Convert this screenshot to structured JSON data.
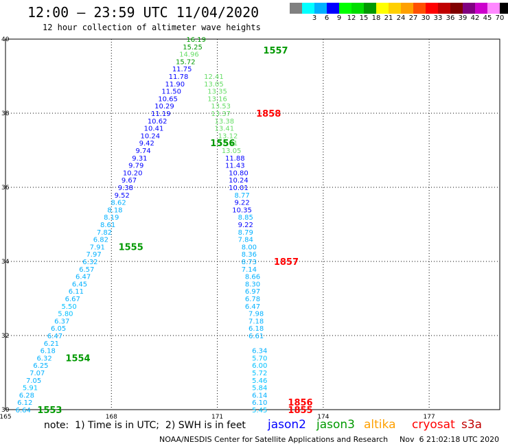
{
  "header": {
    "title": "12:00 – 23:59 UTC 11/04/2020",
    "subtitle": "12 hour collection of altimeter wave heights"
  },
  "legend": {
    "unit": "(ft)",
    "scale": [
      {
        "label": "",
        "color": "#808080"
      },
      {
        "label": "3",
        "color": "#00ffff"
      },
      {
        "label": "6",
        "color": "#00b0ff"
      },
      {
        "label": "9",
        "color": "#0000ff"
      },
      {
        "label": "12",
        "color": "#00ff00"
      },
      {
        "label": "15",
        "color": "#00dd00"
      },
      {
        "label": "18",
        "color": "#009900"
      },
      {
        "label": "21",
        "color": "#ffff00"
      },
      {
        "label": "24",
        "color": "#ffd000"
      },
      {
        "label": "27",
        "color": "#ffa000"
      },
      {
        "label": "30",
        "color": "#ff5000"
      },
      {
        "label": "33",
        "color": "#ff0000"
      },
      {
        "label": "36",
        "color": "#c00000"
      },
      {
        "label": "39",
        "color": "#800000"
      },
      {
        "label": "42",
        "color": "#800080"
      },
      {
        "label": "45",
        "color": "#cc00cc"
      },
      {
        "label": "70",
        "color": "#ff88ff"
      },
      {
        "label": "",
        "color": "#000000"
      }
    ]
  },
  "chart_data": {
    "type": "scatter",
    "xticks": [
      "165",
      "168",
      "171",
      "174",
      "177"
    ],
    "yticks": [
      "30",
      "32",
      "34",
      "36",
      "38",
      "40"
    ],
    "xlim": [
      165,
      179
    ],
    "ylim": [
      30,
      40
    ],
    "grid": true,
    "series": [
      {
        "name": "pass 1553-1557 west",
        "points": [
          {
            "x": 165.5,
            "y": 30.0,
            "v": "6.64",
            "c": "#00b0ff"
          },
          {
            "x": 165.55,
            "y": 30.2,
            "v": "6.12",
            "c": "#00b0ff"
          },
          {
            "x": 165.6,
            "y": 30.4,
            "v": "6.28",
            "c": "#00b0ff"
          },
          {
            "x": 165.7,
            "y": 30.6,
            "v": "5.91",
            "c": "#00c0ff"
          },
          {
            "x": 165.8,
            "y": 30.8,
            "v": "7.05",
            "c": "#00b0ff"
          },
          {
            "x": 165.9,
            "y": 31.0,
            "v": "7.07",
            "c": "#00b0ff"
          },
          {
            "x": 166.0,
            "y": 31.2,
            "v": "6.25",
            "c": "#00b0ff"
          },
          {
            "x": 166.1,
            "y": 31.4,
            "v": "6.32",
            "c": "#00b0ff"
          },
          {
            "x": 166.2,
            "y": 31.6,
            "v": "6.18",
            "c": "#00b0ff"
          },
          {
            "x": 166.3,
            "y": 31.8,
            "v": "6.21",
            "c": "#00b0ff"
          },
          {
            "x": 166.4,
            "y": 32.0,
            "v": "6.47",
            "c": "#00b0ff"
          },
          {
            "x": 166.5,
            "y": 32.2,
            "v": "6.05",
            "c": "#00b0ff"
          },
          {
            "x": 166.6,
            "y": 32.4,
            "v": "6.37",
            "c": "#00b0ff"
          },
          {
            "x": 166.7,
            "y": 32.6,
            "v": "5.80",
            "c": "#00c0ff"
          },
          {
            "x": 166.8,
            "y": 32.8,
            "v": "5.50",
            "c": "#00c0ff"
          },
          {
            "x": 166.9,
            "y": 33.0,
            "v": "6.67",
            "c": "#00b0ff"
          },
          {
            "x": 167.0,
            "y": 33.2,
            "v": "6.11",
            "c": "#00b0ff"
          },
          {
            "x": 167.1,
            "y": 33.4,
            "v": "6.45",
            "c": "#00b0ff"
          },
          {
            "x": 167.2,
            "y": 33.6,
            "v": "6.47",
            "c": "#00b0ff"
          },
          {
            "x": 167.3,
            "y": 33.8,
            "v": "6.57",
            "c": "#00b0ff"
          },
          {
            "x": 167.4,
            "y": 34.0,
            "v": "6.32",
            "c": "#00b0ff"
          },
          {
            "x": 167.5,
            "y": 34.2,
            "v": "7.97",
            "c": "#00b0ff"
          },
          {
            "x": 167.6,
            "y": 34.4,
            "v": "7.91",
            "c": "#00b0ff"
          },
          {
            "x": 167.7,
            "y": 34.6,
            "v": "6.82",
            "c": "#00b0ff"
          },
          {
            "x": 167.8,
            "y": 34.8,
            "v": "7.82",
            "c": "#00b0ff"
          },
          {
            "x": 167.9,
            "y": 35.0,
            "v": "8.61",
            "c": "#00b0ff"
          },
          {
            "x": 168.0,
            "y": 35.2,
            "v": "8.19",
            "c": "#00b0ff"
          },
          {
            "x": 168.1,
            "y": 35.4,
            "v": "8.18",
            "c": "#00b0ff"
          },
          {
            "x": 168.2,
            "y": 35.6,
            "v": "8.62",
            "c": "#00b0ff"
          },
          {
            "x": 168.3,
            "y": 35.8,
            "v": "9.52",
            "c": "#0000ff"
          },
          {
            "x": 168.4,
            "y": 36.0,
            "v": "9.38",
            "c": "#0000ff"
          },
          {
            "x": 168.5,
            "y": 36.2,
            "v": "9.67",
            "c": "#0000ff"
          },
          {
            "x": 168.6,
            "y": 36.4,
            "v": "10.20",
            "c": "#0000ff"
          },
          {
            "x": 168.7,
            "y": 36.6,
            "v": "9.79",
            "c": "#0000ff"
          },
          {
            "x": 168.8,
            "y": 36.8,
            "v": "9.31",
            "c": "#0000ff"
          },
          {
            "x": 168.9,
            "y": 37.0,
            "v": "9.74",
            "c": "#0000ff"
          },
          {
            "x": 169.0,
            "y": 37.2,
            "v": "9.42",
            "c": "#0000ff"
          },
          {
            "x": 169.1,
            "y": 37.4,
            "v": "10.24",
            "c": "#0000ff"
          },
          {
            "x": 169.2,
            "y": 37.6,
            "v": "10.41",
            "c": "#0000ff"
          },
          {
            "x": 169.3,
            "y": 37.8,
            "v": "10.62",
            "c": "#0000ff"
          },
          {
            "x": 169.4,
            "y": 38.0,
            "v": "11.19",
            "c": "#0000ff"
          },
          {
            "x": 169.5,
            "y": 38.2,
            "v": "10.29",
            "c": "#0000ff"
          },
          {
            "x": 169.6,
            "y": 38.4,
            "v": "10.65",
            "c": "#0000ff"
          },
          {
            "x": 169.7,
            "y": 38.6,
            "v": "11.50",
            "c": "#0000ff"
          },
          {
            "x": 169.8,
            "y": 38.8,
            "v": "11.90",
            "c": "#0000ff"
          },
          {
            "x": 169.9,
            "y": 39.0,
            "v": "11.78",
            "c": "#0000ff"
          },
          {
            "x": 170.0,
            "y": 39.2,
            "v": "11.75",
            "c": "#0000ff"
          },
          {
            "x": 170.1,
            "y": 39.4,
            "v": "15.72",
            "c": "#009900"
          },
          {
            "x": 170.2,
            "y": 39.6,
            "v": "14.96",
            "c": "#66dd66"
          },
          {
            "x": 170.3,
            "y": 39.8,
            "v": "15.25",
            "c": "#009900"
          },
          {
            "x": 170.4,
            "y": 40.0,
            "v": "16.19",
            "c": "#009900"
          }
        ]
      },
      {
        "name": "pass 1855-1858 east",
        "points": [
          {
            "x": 172.2,
            "y": 30.0,
            "v": "5.45",
            "c": "#00c0ff"
          },
          {
            "x": 172.2,
            "y": 30.2,
            "v": "6.10",
            "c": "#00b0ff"
          },
          {
            "x": 172.2,
            "y": 30.4,
            "v": "6.14",
            "c": "#00b0ff"
          },
          {
            "x": 172.2,
            "y": 30.6,
            "v": "5.84",
            "c": "#00c0ff"
          },
          {
            "x": 172.2,
            "y": 30.8,
            "v": "5.46",
            "c": "#00c0ff"
          },
          {
            "x": 172.2,
            "y": 31.0,
            "v": "5.72",
            "c": "#00c0ff"
          },
          {
            "x": 172.2,
            "y": 31.2,
            "v": "6.00",
            "c": "#00c0ff"
          },
          {
            "x": 172.2,
            "y": 31.4,
            "v": "5.70",
            "c": "#00c0ff"
          },
          {
            "x": 172.2,
            "y": 31.6,
            "v": "6.34",
            "c": "#00b0ff"
          },
          {
            "x": 172.1,
            "y": 32.0,
            "v": "6.61",
            "c": "#00b0ff"
          },
          {
            "x": 172.1,
            "y": 32.2,
            "v": "6.18",
            "c": "#00b0ff"
          },
          {
            "x": 172.1,
            "y": 32.4,
            "v": "7.18",
            "c": "#00b0ff"
          },
          {
            "x": 172.1,
            "y": 32.6,
            "v": "7.98",
            "c": "#00b0ff"
          },
          {
            "x": 172.0,
            "y": 32.8,
            "v": "6.47",
            "c": "#00b0ff"
          },
          {
            "x": 172.0,
            "y": 33.0,
            "v": "6.78",
            "c": "#00b0ff"
          },
          {
            "x": 172.0,
            "y": 33.2,
            "v": "6.97",
            "c": "#00b0ff"
          },
          {
            "x": 172.0,
            "y": 33.4,
            "v": "8.30",
            "c": "#00b0ff"
          },
          {
            "x": 172.0,
            "y": 33.6,
            "v": "8.66",
            "c": "#00b0ff"
          },
          {
            "x": 171.9,
            "y": 33.8,
            "v": "7.14",
            "c": "#00b0ff"
          },
          {
            "x": 171.9,
            "y": 34.0,
            "v": "8.73",
            "c": "#00b0ff"
          },
          {
            "x": 171.9,
            "y": 34.2,
            "v": "8.36",
            "c": "#00b0ff"
          },
          {
            "x": 171.9,
            "y": 34.4,
            "v": "8.00",
            "c": "#00b0ff"
          },
          {
            "x": 171.8,
            "y": 34.6,
            "v": "7.84",
            "c": "#00b0ff"
          },
          {
            "x": 171.8,
            "y": 34.8,
            "v": "8.79",
            "c": "#00b0ff"
          },
          {
            "x": 171.8,
            "y": 35.0,
            "v": "9.22",
            "c": "#0000ff"
          },
          {
            "x": 171.8,
            "y": 35.2,
            "v": "8.85",
            "c": "#00b0ff"
          },
          {
            "x": 171.7,
            "y": 35.4,
            "v": "10.35",
            "c": "#0000ff"
          },
          {
            "x": 171.7,
            "y": 35.6,
            "v": "9.22",
            "c": "#0000ff"
          },
          {
            "x": 171.7,
            "y": 35.8,
            "v": "8.77",
            "c": "#00b0ff"
          },
          {
            "x": 171.6,
            "y": 36.0,
            "v": "10.01",
            "c": "#0000ff"
          },
          {
            "x": 171.6,
            "y": 36.2,
            "v": "10.24",
            "c": "#0000ff"
          },
          {
            "x": 171.6,
            "y": 36.4,
            "v": "10.80",
            "c": "#0000ff"
          },
          {
            "x": 171.5,
            "y": 36.6,
            "v": "11.43",
            "c": "#0000ff"
          },
          {
            "x": 171.5,
            "y": 36.8,
            "v": "11.88",
            "c": "#0000ff"
          },
          {
            "x": 171.4,
            "y": 37.0,
            "v": "13.05",
            "c": "#66dd66"
          },
          {
            "x": 171.3,
            "y": 37.2,
            "v": "12.91",
            "c": "#66dd66"
          },
          {
            "x": 171.3,
            "y": 37.4,
            "v": "13.12",
            "c": "#66dd66"
          },
          {
            "x": 171.2,
            "y": 37.6,
            "v": "13.41",
            "c": "#66dd66"
          },
          {
            "x": 171.2,
            "y": 37.8,
            "v": "13.38",
            "c": "#66dd66"
          },
          {
            "x": 171.1,
            "y": 38.0,
            "v": "13.37",
            "c": "#66dd66"
          },
          {
            "x": 171.1,
            "y": 38.2,
            "v": "13.53",
            "c": "#66dd66"
          },
          {
            "x": 171.0,
            "y": 38.4,
            "v": "13.16",
            "c": "#66dd66"
          },
          {
            "x": 171.0,
            "y": 38.6,
            "v": "13.35",
            "c": "#66dd66"
          },
          {
            "x": 170.9,
            "y": 38.8,
            "v": "13.05",
            "c": "#66dd66"
          },
          {
            "x": 170.9,
            "y": 39.0,
            "v": "12.41",
            "c": "#66dd66"
          }
        ]
      }
    ],
    "pass_labels": [
      {
        "text": "1553",
        "x": 165.9,
        "y": 30.0,
        "c": "#009900"
      },
      {
        "text": "1554",
        "x": 166.7,
        "y": 31.4,
        "c": "#009900"
      },
      {
        "text": "1555",
        "x": 168.2,
        "y": 34.4,
        "c": "#009900"
      },
      {
        "text": "1556",
        "x": 170.8,
        "y": 37.2,
        "c": "#009900"
      },
      {
        "text": "1557",
        "x": 172.3,
        "y": 39.7,
        "c": "#009900"
      },
      {
        "text": "1855",
        "x": 173.0,
        "y": 30.0,
        "c": "#ff0000"
      },
      {
        "text": "1856",
        "x": 173.0,
        "y": 30.2,
        "c": "#ff0000"
      },
      {
        "text": "1857",
        "x": 172.6,
        "y": 34.0,
        "c": "#ff0000"
      },
      {
        "text": "1858",
        "x": 172.1,
        "y": 38.0,
        "c": "#ff0000"
      }
    ]
  },
  "footer": {
    "note": "note:  1) Time is in UTC;  2) SWH is in feet",
    "satellites": [
      {
        "label": "jason2",
        "color": "#0000ff"
      },
      {
        "label": "jason3",
        "color": "#009900"
      },
      {
        "label": "altika",
        "color": "#ffa000"
      },
      {
        "label": "cryosat",
        "color": "#ff0000"
      },
      {
        "label": "s3a",
        "color": "#c00000"
      }
    ],
    "credit": "NOAA/NESDIS Center for Satellite Applications and Research",
    "timestamp": "Nov  6 21:02:18 UTC 2020"
  }
}
